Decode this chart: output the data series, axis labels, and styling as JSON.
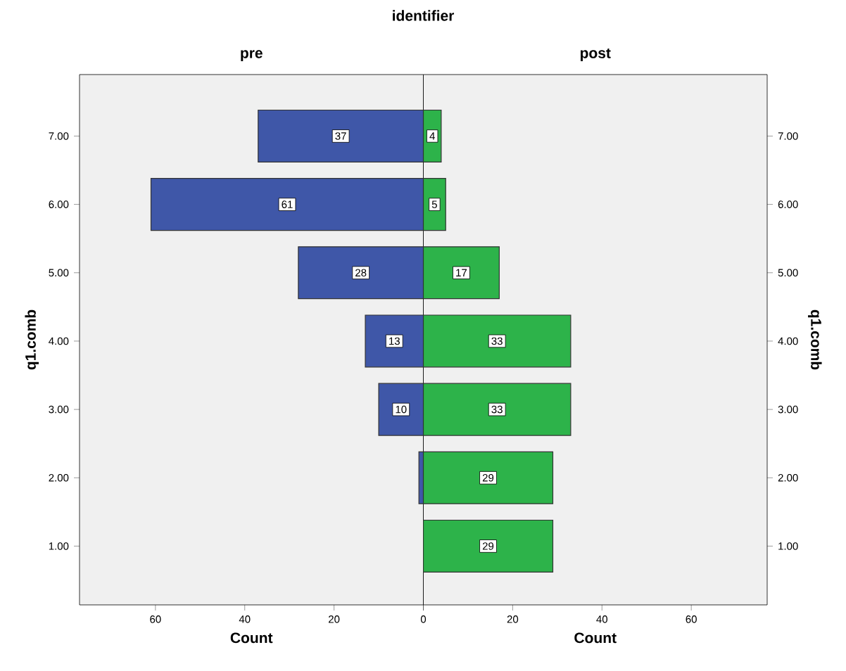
{
  "chart_data": [
    {
      "type": "bar",
      "orientation": "horizontal",
      "title": "pre",
      "xlabel": "Count",
      "ylabel": "q1.comb",
      "annotations": [
        "identifier"
      ],
      "categories": [
        "7.00",
        "6.00",
        "5.00",
        "4.00",
        "3.00",
        "2.00",
        "1.00"
      ],
      "values": [
        37,
        61,
        28,
        13,
        10,
        1,
        null
      ],
      "color": "#3f57a8",
      "value_labels": [
        "37",
        "61",
        "28",
        "13",
        "10",
        null,
        null
      ],
      "xlim": [
        77,
        0
      ],
      "xticks": [
        60,
        40,
        20,
        {
          "value": 0,
          "label": null
        }
      ]
    },
    {
      "type": "bar",
      "orientation": "horizontal",
      "title": "post",
      "xlabel": "Count",
      "ylabel": "q1.comb",
      "categories": [
        "7.00",
        "6.00",
        "5.00",
        "4.00",
        "3.00",
        "2.00",
        "1.00"
      ],
      "values": [
        4,
        5,
        17,
        33,
        33,
        29,
        29
      ],
      "color": "#2db34a",
      "value_labels": [
        "4",
        "5",
        "17",
        "33",
        "33",
        "29",
        "29"
      ],
      "xlim": [
        0,
        77
      ],
      "xticks": [
        0,
        20,
        40,
        60
      ]
    }
  ]
}
